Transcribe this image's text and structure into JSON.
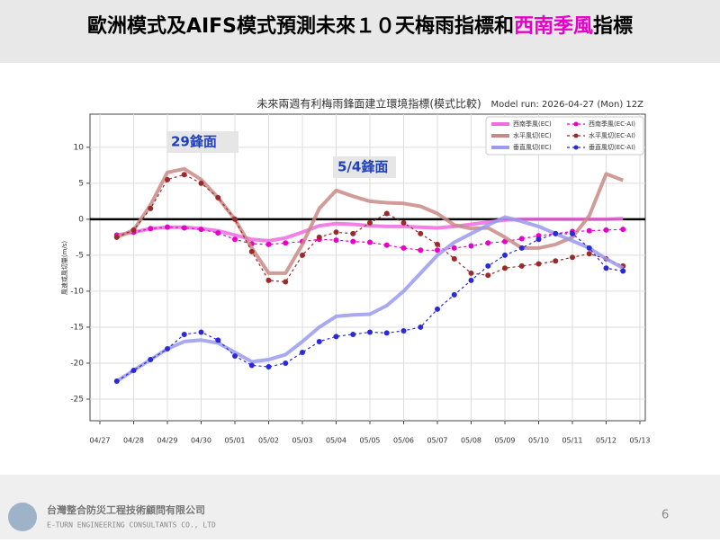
{
  "header": {
    "title": [
      "歐洲模式及AIFS模式預測未來１０天梅雨指標和",
      "西南季風",
      "指標"
    ],
    "highlight_color": "#e600c8"
  },
  "chart_data": {
    "type": "line",
    "title": "未來兩週有利梅雨鋒面建立環境指標(模式比較)",
    "subtitle": "Model run: 2026-04-27 (Mon) 12Z",
    "y_label": "風速或風切量(m/s)",
    "annotations": [
      "29鋒面",
      "5/4鋒面"
    ],
    "categories": [
      "04/27",
      null,
      "04/28",
      null,
      "04/29",
      null,
      "04/30",
      null,
      "05/01",
      null,
      "05/02",
      null,
      "05/03",
      null,
      "05/04",
      null,
      "05/05",
      null,
      "05/06",
      null,
      "05/07",
      null,
      "05/08",
      null,
      "05/09",
      null,
      "05/10",
      null,
      "05/11",
      null,
      "05/12",
      null,
      "05/13"
    ],
    "ylim": [
      -28,
      14.6
    ],
    "yticks": [
      10,
      5,
      0,
      -5,
      -10,
      -15,
      -20,
      -25
    ],
    "grid": true,
    "zero_line": true,
    "legend": "upper right",
    "series": [
      {
        "name": "西南季風(EC)",
        "color": "#f06ae0",
        "style": "solid",
        "values": [
          null,
          -2.2,
          -1.8,
          -1.3,
          -1.1,
          -1.1,
          -1.3,
          -1.6,
          -2.2,
          -2.8,
          -3.0,
          -2.6,
          -1.8,
          -0.9,
          -0.6,
          -0.7,
          -0.9,
          -1.0,
          -1.0,
          -1.1,
          -1.2,
          -1.0,
          -0.7,
          -0.4,
          -0.1,
          0.0,
          0.0,
          0.0,
          0.0,
          0.0,
          0.0,
          0.1,
          null
        ]
      },
      {
        "name": "西南季風(EC-AI)",
        "color": "#e600c8",
        "style": "dotted",
        "values": [
          null,
          -2.2,
          -1.8,
          -1.3,
          -1.1,
          -1.2,
          -1.4,
          -1.9,
          -2.8,
          -3.4,
          -3.5,
          -3.3,
          -3.1,
          -2.8,
          -2.9,
          -3.1,
          -3.2,
          -3.6,
          -4.0,
          -4.3,
          -4.3,
          -4.0,
          -3.7,
          -3.3,
          -3.1,
          -2.7,
          -2.3,
          -2.0,
          -1.7,
          -1.6,
          -1.5,
          -1.4,
          null
        ]
      },
      {
        "name": "水平風切(EC)",
        "color": "#c98a86",
        "style": "solid",
        "values": [
          null,
          -2.5,
          -1.5,
          2.0,
          6.5,
          7.0,
          5.5,
          3.0,
          0.0,
          -4.0,
          -7.5,
          -7.5,
          -3.5,
          1.5,
          4.0,
          3.2,
          2.5,
          2.3,
          2.2,
          1.8,
          0.8,
          -0.8,
          -1.3,
          -1.2,
          -2.5,
          -4.0,
          -4.0,
          -3.5,
          -2.5,
          0.5,
          6.3,
          5.4,
          null
        ]
      },
      {
        "name": "水平風切(EC-AI)",
        "color": "#9b2a2a",
        "style": "dotted",
        "values": [
          null,
          -2.5,
          -1.5,
          1.5,
          5.5,
          6.2,
          5.0,
          3.0,
          0.0,
          -4.5,
          -8.5,
          -8.7,
          -5.0,
          -2.5,
          -1.8,
          -2.0,
          -0.5,
          0.8,
          -0.5,
          -2.0,
          -3.5,
          -5.5,
          -7.5,
          -7.8,
          -6.8,
          -6.5,
          -6.2,
          -5.8,
          -5.3,
          -4.8,
          -5.5,
          -6.5,
          null
        ]
      },
      {
        "name": "垂直風切(EC)",
        "color": "#9a9aee",
        "style": "solid",
        "values": [
          null,
          -22.5,
          -21.0,
          -19.5,
          -18.0,
          -17.0,
          -16.8,
          -17.2,
          -18.5,
          -19.8,
          -19.5,
          -18.8,
          -17.0,
          -15.0,
          -13.5,
          -13.3,
          -13.2,
          -12.0,
          -10.0,
          -7.5,
          -5.0,
          -3.2,
          -2.0,
          -0.8,
          0.3,
          -0.3,
          -1.0,
          -2.0,
          -3.0,
          -4.0,
          -5.5,
          -6.8,
          null
        ]
      },
      {
        "name": "垂直風切(EC-AI)",
        "color": "#2a2ad8",
        "style": "dotted",
        "values": [
          null,
          -22.5,
          -21.0,
          -19.5,
          -18.0,
          -16.0,
          -15.7,
          -16.8,
          -19.0,
          -20.3,
          -20.5,
          -20.0,
          -18.5,
          -17.0,
          -16.3,
          -16.0,
          -15.7,
          -15.8,
          -15.5,
          -15.0,
          -12.5,
          -10.5,
          -8.5,
          -6.5,
          -5.0,
          -4.0,
          -2.8,
          -2.0,
          -2.0,
          -4.0,
          -6.8,
          -7.2,
          null
        ]
      }
    ]
  },
  "footer": {
    "company": "台灣整合防災工程技術顧問有限公司",
    "company_en": "E-TURN ENGINEERING CONSULTANTS CO., LTD",
    "page": "6"
  }
}
